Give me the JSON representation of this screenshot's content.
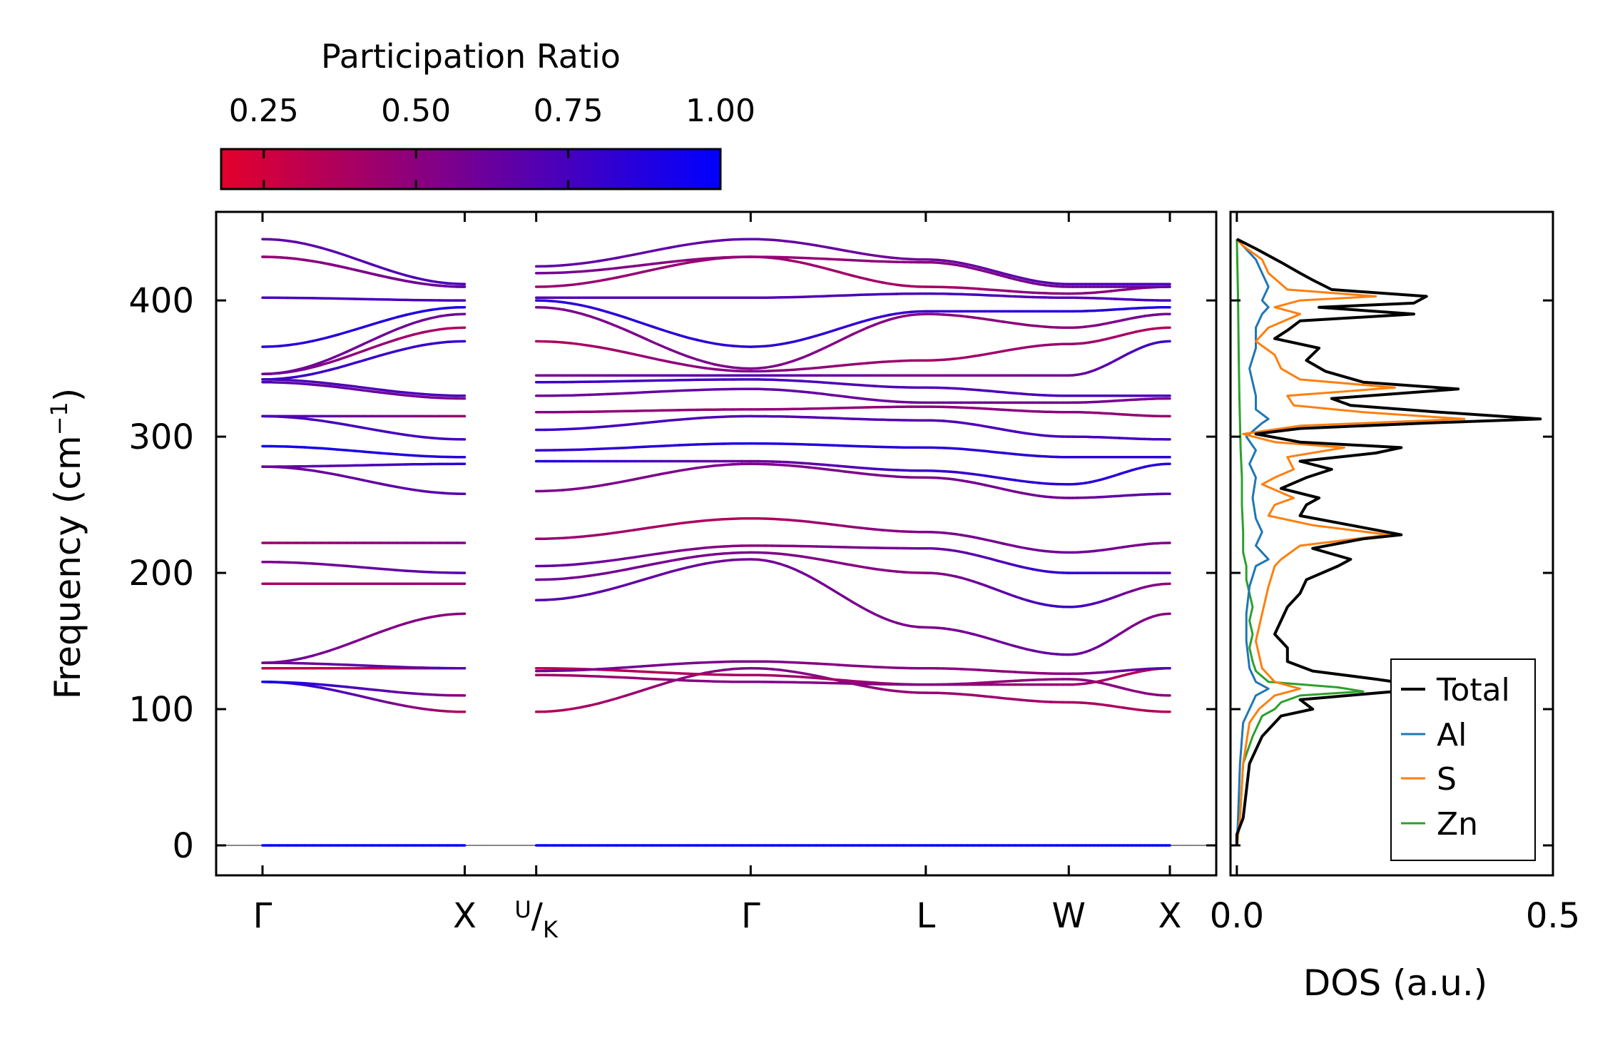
{
  "chart_data": [
    {
      "type": "colorbar",
      "title": "Participation Ratio",
      "range": [
        0.18,
        1.0
      ],
      "ticks": [
        "0.25",
        "0.50",
        "0.75",
        "1.00"
      ],
      "tick_values": [
        0.25,
        0.5,
        0.75,
        1.0
      ],
      "colormap": [
        "#e4002b",
        "#0000ff"
      ]
    },
    {
      "type": "line",
      "subtype": "phonon-dispersion",
      "ylabel_main": "Frequency (cm",
      "ylabel_sup": "−1",
      "ylabel_close": ")",
      "ylim": [
        -22,
        465
      ],
      "yticks": [
        0,
        100,
        200,
        300,
        400
      ],
      "ytick_labels": [
        "0",
        "100",
        "200",
        "300",
        "400"
      ],
      "kpath": {
        "positions": [
          0,
          1.0,
          1.3535,
          2.4142,
          3.2802,
          3.9873,
          4.4873
        ],
        "labels": [
          "Γ",
          "X",
          "U/K",
          "Γ",
          "L",
          "W",
          "X"
        ],
        "uk_label": {
          "main": "/",
          "sup": "U",
          "sub": "K"
        }
      },
      "segments": [
        {
          "x0": 0,
          "x1": 1.0
        },
        {
          "x0": 1.3535,
          "x1": 2.4142
        },
        {
          "x0": 2.4142,
          "x1": 3.2802
        },
        {
          "x0": 3.2802,
          "x1": 3.9873
        },
        {
          "x0": 3.9873,
          "x1": 4.4873
        }
      ],
      "point_values": [
        [
          0,
          0,
          0,
          0,
          0,
          0
        ],
        [
          120,
          98,
          98,
          130,
          112,
          105
        ],
        [
          120,
          110,
          130,
          125,
          118,
          122
        ],
        [
          130,
          130,
          125,
          120,
          118,
          118
        ],
        [
          134,
          130,
          128,
          135,
          130,
          126
        ],
        [
          134,
          170,
          180,
          210,
          160,
          140
        ],
        [
          192,
          192,
          195,
          215,
          200,
          175
        ],
        [
          208,
          200,
          205,
          220,
          218,
          200
        ],
        [
          222,
          222,
          225,
          240,
          230,
          215
        ],
        [
          278,
          258,
          260,
          280,
          270,
          255
        ],
        [
          278,
          280,
          282,
          282,
          275,
          265
        ],
        [
          293,
          285,
          290,
          295,
          292,
          285
        ],
        [
          315,
          298,
          305,
          315,
          312,
          300
        ],
        [
          315,
          315,
          318,
          320,
          322,
          318
        ],
        [
          340,
          328,
          330,
          335,
          325,
          325
        ],
        [
          342,
          330,
          340,
          342,
          336,
          330
        ],
        [
          342,
          370,
          345,
          345,
          345,
          345
        ],
        [
          346,
          380,
          370,
          348,
          356,
          368
        ],
        [
          346,
          390,
          395,
          350,
          390,
          380
        ],
        [
          366,
          395,
          400,
          366,
          392,
          392
        ],
        [
          402,
          400,
          402,
          402,
          405,
          402
        ],
        [
          432,
          410,
          410,
          432,
          410,
          405
        ],
        [
          432,
          410,
          420,
          432,
          428,
          410
        ],
        [
          445,
          412,
          425,
          445,
          430,
          412
        ]
      ],
      "point_pr": [
        [
          1.0,
          1.0,
          1.0,
          1.0,
          1.0,
          1.0
        ],
        [
          0.95,
          0.35,
          0.35,
          0.55,
          0.45,
          0.4
        ],
        [
          0.95,
          0.5,
          0.3,
          0.4,
          0.45,
          0.5
        ],
        [
          0.3,
          0.3,
          0.4,
          0.55,
          0.5,
          0.45
        ],
        [
          0.6,
          0.7,
          0.6,
          0.55,
          0.5,
          0.5
        ],
        [
          0.6,
          0.5,
          0.7,
          0.6,
          0.55,
          0.65
        ],
        [
          0.4,
          0.45,
          0.6,
          0.55,
          0.5,
          0.8
        ],
        [
          0.55,
          0.7,
          0.65,
          0.5,
          0.6,
          0.85
        ],
        [
          0.45,
          0.55,
          0.45,
          0.35,
          0.55,
          0.6
        ],
        [
          0.6,
          0.7,
          0.55,
          0.55,
          0.55,
          0.6
        ],
        [
          0.6,
          0.85,
          0.9,
          0.6,
          0.8,
          0.85
        ],
        [
          0.95,
          0.85,
          0.8,
          0.9,
          0.85,
          0.85
        ],
        [
          0.75,
          0.75,
          0.8,
          0.7,
          0.7,
          0.75
        ],
        [
          0.75,
          0.45,
          0.5,
          0.45,
          0.5,
          0.5
        ],
        [
          0.7,
          0.55,
          0.6,
          0.65,
          0.6,
          0.6
        ],
        [
          0.7,
          0.75,
          0.8,
          0.75,
          0.7,
          0.75
        ],
        [
          0.8,
          0.8,
          0.55,
          0.7,
          0.55,
          0.6
        ],
        [
          0.6,
          0.35,
          0.35,
          0.55,
          0.4,
          0.45
        ],
        [
          0.6,
          0.6,
          0.55,
          0.55,
          0.5,
          0.5
        ],
        [
          0.85,
          0.9,
          0.85,
          0.85,
          0.8,
          0.85
        ],
        [
          0.75,
          0.75,
          0.7,
          0.7,
          0.75,
          0.7
        ],
        [
          0.45,
          0.5,
          0.45,
          0.45,
          0.4,
          0.5
        ],
        [
          0.45,
          0.65,
          0.6,
          0.45,
          0.5,
          0.6
        ],
        [
          0.65,
          0.75,
          0.65,
          0.65,
          0.6,
          0.7
        ]
      ]
    },
    {
      "type": "line",
      "subtype": "density-of-states",
      "xlabel": "DOS (a.u.)",
      "xlim": [
        -0.01,
        0.5
      ],
      "ylim": [
        -22,
        465
      ],
      "xticks": [
        0.0,
        0.5
      ],
      "xtick_labels": [
        "0.0",
        "0.5"
      ],
      "legend_position": "lower-right",
      "series": [
        {
          "name": "Total",
          "color": "#000000",
          "peaks": [
            [
              0,
              0.0
            ],
            [
              8,
              0.0
            ],
            [
              20,
              0.01
            ],
            [
              40,
              0.015
            ],
            [
              60,
              0.02
            ],
            [
              80,
              0.04
            ],
            [
              95,
              0.07
            ],
            [
              100,
              0.12
            ],
            [
              107,
              0.1
            ],
            [
              113,
              0.25
            ],
            [
              118,
              0.28
            ],
            [
              122,
              0.22
            ],
            [
              128,
              0.12
            ],
            [
              135,
              0.08
            ],
            [
              145,
              0.08
            ],
            [
              155,
              0.06
            ],
            [
              165,
              0.07
            ],
            [
              175,
              0.08
            ],
            [
              185,
              0.1
            ],
            [
              195,
              0.11
            ],
            [
              205,
              0.16
            ],
            [
              210,
              0.18
            ],
            [
              218,
              0.12
            ],
            [
              225,
              0.2
            ],
            [
              228,
              0.26
            ],
            [
              235,
              0.18
            ],
            [
              242,
              0.1
            ],
            [
              250,
              0.11
            ],
            [
              255,
              0.13
            ],
            [
              262,
              0.07
            ],
            [
              270,
              0.11
            ],
            [
              276,
              0.15
            ],
            [
              282,
              0.1
            ],
            [
              288,
              0.22
            ],
            [
              292,
              0.26
            ],
            [
              296,
              0.1
            ],
            [
              302,
              0.03
            ],
            [
              306,
              0.1
            ],
            [
              310,
              0.3
            ],
            [
              313,
              0.48
            ],
            [
              318,
              0.32
            ],
            [
              323,
              0.18
            ],
            [
              328,
              0.15
            ],
            [
              335,
              0.35
            ],
            [
              340,
              0.2
            ],
            [
              348,
              0.14
            ],
            [
              356,
              0.11
            ],
            [
              365,
              0.13
            ],
            [
              372,
              0.06
            ],
            [
              378,
              0.08
            ],
            [
              385,
              0.1
            ],
            [
              390,
              0.28
            ],
            [
              395,
              0.13
            ],
            [
              398,
              0.28
            ],
            [
              403,
              0.3
            ],
            [
              408,
              0.15
            ],
            [
              415,
              0.12
            ],
            [
              420,
              0.1
            ],
            [
              428,
              0.07
            ],
            [
              438,
              0.03
            ],
            [
              445,
              0.0
            ]
          ]
        },
        {
          "name": "Al",
          "color": "#1f77b4",
          "peaks": [
            [
              0,
              0.0
            ],
            [
              20,
              0.002
            ],
            [
              60,
              0.005
            ],
            [
              90,
              0.01
            ],
            [
              100,
              0.02
            ],
            [
              110,
              0.03
            ],
            [
              115,
              0.05
            ],
            [
              120,
              0.03
            ],
            [
              130,
              0.02
            ],
            [
              150,
              0.015
            ],
            [
              170,
              0.015
            ],
            [
              190,
              0.02
            ],
            [
              205,
              0.03
            ],
            [
              210,
              0.05
            ],
            [
              220,
              0.03
            ],
            [
              230,
              0.04
            ],
            [
              240,
              0.03
            ],
            [
              255,
              0.025
            ],
            [
              270,
              0.03
            ],
            [
              280,
              0.02
            ],
            [
              290,
              0.03
            ],
            [
              300,
              0.015
            ],
            [
              310,
              0.04
            ],
            [
              313,
              0.05
            ],
            [
              320,
              0.03
            ],
            [
              330,
              0.03
            ],
            [
              340,
              0.025
            ],
            [
              350,
              0.02
            ],
            [
              365,
              0.03
            ],
            [
              380,
              0.03
            ],
            [
              390,
              0.04
            ],
            [
              395,
              0.05
            ],
            [
              400,
              0.04
            ],
            [
              410,
              0.05
            ],
            [
              420,
              0.04
            ],
            [
              430,
              0.03
            ],
            [
              440,
              0.01
            ],
            [
              445,
              0.0
            ]
          ]
        },
        {
          "name": "S",
          "color": "#ff7f0e",
          "peaks": [
            [
              0,
              0.0
            ],
            [
              20,
              0.005
            ],
            [
              60,
              0.01
            ],
            [
              90,
              0.02
            ],
            [
              100,
              0.035
            ],
            [
              110,
              0.06
            ],
            [
              115,
              0.1
            ],
            [
              120,
              0.06
            ],
            [
              130,
              0.04
            ],
            [
              150,
              0.03
            ],
            [
              170,
              0.04
            ],
            [
              190,
              0.05
            ],
            [
              205,
              0.06
            ],
            [
              210,
              0.07
            ],
            [
              220,
              0.1
            ],
            [
              228,
              0.24
            ],
            [
              235,
              0.12
            ],
            [
              242,
              0.05
            ],
            [
              250,
              0.06
            ],
            [
              255,
              0.09
            ],
            [
              265,
              0.04
            ],
            [
              270,
              0.06
            ],
            [
              276,
              0.09
            ],
            [
              285,
              0.08
            ],
            [
              292,
              0.17
            ],
            [
              296,
              0.06
            ],
            [
              302,
              0.01
            ],
            [
              308,
              0.1
            ],
            [
              313,
              0.36
            ],
            [
              318,
              0.2
            ],
            [
              323,
              0.09
            ],
            [
              330,
              0.08
            ],
            [
              336,
              0.25
            ],
            [
              342,
              0.1
            ],
            [
              350,
              0.07
            ],
            [
              360,
              0.06
            ],
            [
              370,
              0.03
            ],
            [
              380,
              0.05
            ],
            [
              390,
              0.1
            ],
            [
              395,
              0.06
            ],
            [
              400,
              0.1
            ],
            [
              403,
              0.22
            ],
            [
              408,
              0.08
            ],
            [
              420,
              0.05
            ],
            [
              430,
              0.04
            ],
            [
              440,
              0.01
            ],
            [
              445,
              0.0
            ]
          ]
        },
        {
          "name": "Zn",
          "color": "#2ca02c",
          "peaks": [
            [
              0,
              0.0
            ],
            [
              20,
              0.005
            ],
            [
              60,
              0.01
            ],
            [
              80,
              0.025
            ],
            [
              95,
              0.04
            ],
            [
              100,
              0.06
            ],
            [
              105,
              0.07
            ],
            [
              110,
              0.1
            ],
            [
              113,
              0.2
            ],
            [
              116,
              0.16
            ],
            [
              120,
              0.05
            ],
            [
              128,
              0.03
            ],
            [
              135,
              0.025
            ],
            [
              145,
              0.02
            ],
            [
              155,
              0.025
            ],
            [
              165,
              0.02
            ],
            [
              175,
              0.025
            ],
            [
              185,
              0.02
            ],
            [
              195,
              0.015
            ],
            [
              205,
              0.015
            ],
            [
              215,
              0.01
            ],
            [
              230,
              0.01
            ],
            [
              250,
              0.008
            ],
            [
              270,
              0.008
            ],
            [
              290,
              0.006
            ],
            [
              310,
              0.005
            ],
            [
              330,
              0.004
            ],
            [
              360,
              0.003
            ],
            [
              400,
              0.002
            ],
            [
              445,
              0.0
            ]
          ]
        }
      ]
    }
  ]
}
